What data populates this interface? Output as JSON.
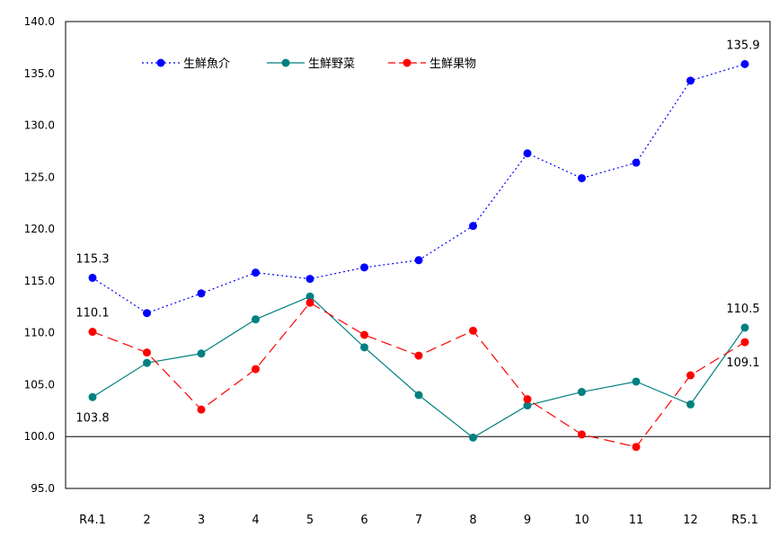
{
  "chart_data": {
    "type": "line",
    "categories": [
      "R4.1",
      "2",
      "3",
      "4",
      "5",
      "6",
      "7",
      "8",
      "9",
      "10",
      "11",
      "12",
      "R5.1"
    ],
    "ylim": [
      95,
      140
    ],
    "yticks": [
      "95.0",
      "100.0",
      "105.0",
      "110.0",
      "115.0",
      "120.0",
      "125.0",
      "130.0",
      "135.0",
      "140.0"
    ],
    "reference_line": 100,
    "grid": false,
    "legend_position": "top-left",
    "series": [
      {
        "name": "生鮮魚介",
        "color": "#0000ff",
        "style": "dotted",
        "values": [
          115.3,
          111.9,
          113.8,
          115.8,
          115.2,
          116.3,
          117.0,
          120.3,
          127.3,
          124.9,
          126.4,
          134.3,
          135.9
        ]
      },
      {
        "name": "生鮮野菜",
        "color": "#008080",
        "style": "solid",
        "values": [
          103.8,
          107.1,
          108.0,
          111.3,
          113.5,
          108.6,
          104.0,
          99.9,
          103.0,
          104.3,
          105.3,
          103.1,
          110.5
        ]
      },
      {
        "name": "生鮮果物",
        "color": "#ff0000",
        "style": "dashed",
        "values": [
          110.1,
          108.1,
          102.6,
          106.5,
          112.9,
          109.8,
          107.8,
          110.2,
          103.6,
          100.2,
          99.0,
          105.9,
          109.1
        ]
      }
    ],
    "annotations": [
      {
        "text": "115.3",
        "series": 0,
        "index": 0,
        "pos": "above"
      },
      {
        "text": "135.9",
        "series": 0,
        "index": 12,
        "pos": "above"
      },
      {
        "text": "110.1",
        "series": 2,
        "index": 0,
        "pos": "above"
      },
      {
        "text": "103.8",
        "series": 1,
        "index": 0,
        "pos": "below"
      },
      {
        "text": "110.5",
        "series": 1,
        "index": 12,
        "pos": "above"
      },
      {
        "text": "109.1",
        "series": 2,
        "index": 12,
        "pos": "below"
      }
    ]
  }
}
